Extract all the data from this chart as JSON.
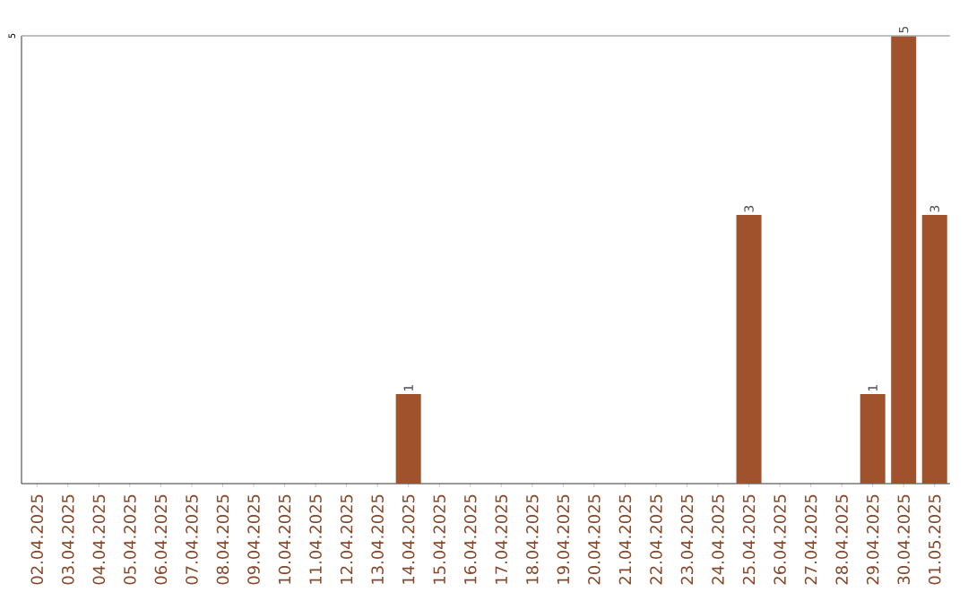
{
  "chart_data": {
    "type": "bar",
    "categories": [
      "02.04.2025",
      "03.04.2025",
      "04.04.2025",
      "05.04.2025",
      "06.04.2025",
      "07.04.2025",
      "08.04.2025",
      "09.04.2025",
      "10.04.2025",
      "11.04.2025",
      "12.04.2025",
      "13.04.2025",
      "14.04.2025",
      "15.04.2025",
      "16.04.2025",
      "17.04.2025",
      "18.04.2025",
      "19.04.2025",
      "20.04.2025",
      "21.04.2025",
      "22.04.2025",
      "23.04.2025",
      "24.04.2025",
      "25.04.2025",
      "26.04.2025",
      "27.04.2025",
      "28.04.2025",
      "29.04.2025",
      "30.04.2025",
      "01.05.2025"
    ],
    "values": [
      null,
      null,
      null,
      null,
      null,
      null,
      null,
      null,
      null,
      null,
      null,
      null,
      1,
      null,
      null,
      null,
      null,
      null,
      null,
      null,
      null,
      null,
      null,
      3,
      null,
      null,
      null,
      1,
      5,
      3
    ],
    "color": "#a0522d",
    "ylim": [
      0,
      5
    ],
    "yticks": [
      5
    ],
    "data_labels": true
  }
}
